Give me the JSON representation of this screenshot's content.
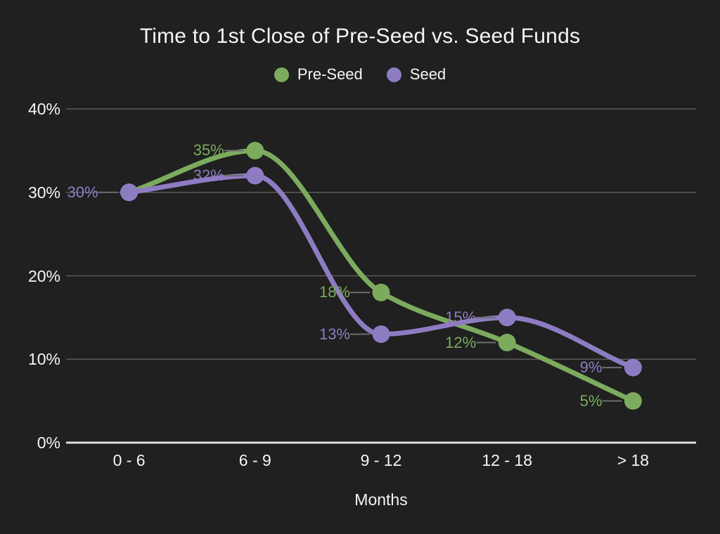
{
  "chart_data": {
    "type": "line",
    "title": "Time to 1st Close of Pre-Seed vs. Seed Funds",
    "xlabel": "Months",
    "ylabel": "",
    "categories": [
      "0 - 6",
      "6 - 9",
      "9 - 12",
      "12 - 18",
      "> 18"
    ],
    "series": [
      {
        "name": "Pre-Seed",
        "color": "#7CAB5E",
        "values": [
          30,
          35,
          18,
          12,
          5
        ],
        "point_labels": [
          "",
          "35%",
          "18%",
          "12%",
          "5%"
        ]
      },
      {
        "name": "Seed",
        "color": "#8E7CC3",
        "values": [
          30,
          32,
          13,
          15,
          9
        ],
        "point_labels": [
          "30%",
          "32%",
          "13%",
          "15%",
          "9%"
        ]
      }
    ],
    "y_ticks": [
      {
        "label": "40%",
        "value": 40
      },
      {
        "label": "30%",
        "value": 30
      },
      {
        "label": "20%",
        "value": 20
      },
      {
        "label": "10%",
        "value": 10
      },
      {
        "label": "0%",
        "value": 0
      }
    ],
    "ylim": [
      0,
      40
    ],
    "grid": "horizontal",
    "line_style": "smooth",
    "legend_position": "top",
    "colors": {
      "background": "#1F201F",
      "text": "#F5F5F5",
      "gridline": "#5B5B5B",
      "axis_line": "#DEDEDE",
      "label_leader": "#6E6E6E"
    }
  }
}
